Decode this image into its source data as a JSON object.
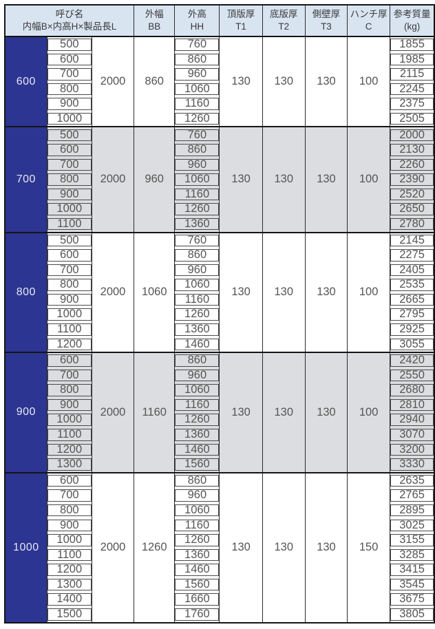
{
  "colors": {
    "header_bg": "#d9e4f1",
    "navy": "#2c3591",
    "gray_band": "#dcdde0",
    "white_band": "#ffffff",
    "outer_border": "#141414",
    "grid_line": "#2b2b2b",
    "box_border": "#4a4a4a",
    "header_text": "#3a3a3a",
    "number_text": "#555555",
    "text_on_navy": "#e7e8f2"
  },
  "table": {
    "header": {
      "name": {
        "line1": "呼び名",
        "line2": "内幅B×内高H×製品長L"
      },
      "cols": [
        {
          "line1": "外幅",
          "line2": "BB"
        },
        {
          "line1": "外高",
          "line2": "HH"
        },
        {
          "line1": "頂版厚",
          "line2": "T1"
        },
        {
          "line1": "底版厚",
          "line2": "T2"
        },
        {
          "line1": "側壁厚",
          "line2": "T3"
        },
        {
          "line1": "ハンチ厚",
          "line2": "C"
        },
        {
          "line1": "参考質量",
          "line2": "(kg)"
        }
      ]
    },
    "groups": [
      {
        "inner_width_B": "600",
        "product_length_L": "2000",
        "outer_width_BB": "860",
        "T1": "130",
        "T2": "130",
        "T3": "130",
        "C": "100",
        "band": "white",
        "rows": [
          {
            "H": "500",
            "HH": "760",
            "mass": "1855"
          },
          {
            "H": "600",
            "HH": "860",
            "mass": "1985"
          },
          {
            "H": "700",
            "HH": "960",
            "mass": "2115"
          },
          {
            "H": "800",
            "HH": "1060",
            "mass": "2245"
          },
          {
            "H": "900",
            "HH": "1160",
            "mass": "2375"
          },
          {
            "H": "1000",
            "HH": "1260",
            "mass": "2505"
          }
        ]
      },
      {
        "inner_width_B": "700",
        "product_length_L": "2000",
        "outer_width_BB": "960",
        "T1": "130",
        "T2": "130",
        "T3": "130",
        "C": "100",
        "band": "gray",
        "rows": [
          {
            "H": "500",
            "HH": "760",
            "mass": "2000"
          },
          {
            "H": "600",
            "HH": "860",
            "mass": "2130"
          },
          {
            "H": "700",
            "HH": "960",
            "mass": "2260"
          },
          {
            "H": "800",
            "HH": "1060",
            "mass": "2390"
          },
          {
            "H": "900",
            "HH": "1160",
            "mass": "2520"
          },
          {
            "H": "1000",
            "HH": "1260",
            "mass": "2650"
          },
          {
            "H": "1100",
            "HH": "1360",
            "mass": "2780"
          }
        ]
      },
      {
        "inner_width_B": "800",
        "product_length_L": "2000",
        "outer_width_BB": "1060",
        "T1": "130",
        "T2": "130",
        "T3": "130",
        "C": "100",
        "band": "white",
        "rows": [
          {
            "H": "500",
            "HH": "760",
            "mass": "2145"
          },
          {
            "H": "600",
            "HH": "860",
            "mass": "2275"
          },
          {
            "H": "700",
            "HH": "960",
            "mass": "2405"
          },
          {
            "H": "800",
            "HH": "1060",
            "mass": "2535"
          },
          {
            "H": "900",
            "HH": "1160",
            "mass": "2665"
          },
          {
            "H": "1000",
            "HH": "1260",
            "mass": "2795"
          },
          {
            "H": "1100",
            "HH": "1360",
            "mass": "2925"
          },
          {
            "H": "1200",
            "HH": "1460",
            "mass": "3055"
          }
        ]
      },
      {
        "inner_width_B": "900",
        "product_length_L": "2000",
        "outer_width_BB": "1160",
        "T1": "130",
        "T2": "130",
        "T3": "130",
        "C": "100",
        "band": "gray",
        "rows": [
          {
            "H": "600",
            "HH": "860",
            "mass": "2420"
          },
          {
            "H": "700",
            "HH": "960",
            "mass": "2550"
          },
          {
            "H": "800",
            "HH": "1060",
            "mass": "2680"
          },
          {
            "H": "900",
            "HH": "1160",
            "mass": "2810"
          },
          {
            "H": "1000",
            "HH": "1260",
            "mass": "2940"
          },
          {
            "H": "1100",
            "HH": "1360",
            "mass": "3070"
          },
          {
            "H": "1200",
            "HH": "1460",
            "mass": "3200"
          },
          {
            "H": "1300",
            "HH": "1560",
            "mass": "3330"
          }
        ]
      },
      {
        "inner_width_B": "1000",
        "product_length_L": "2000",
        "outer_width_BB": "1260",
        "T1": "130",
        "T2": "130",
        "T3": "130",
        "C": "150",
        "band": "white",
        "rows": [
          {
            "H": "600",
            "HH": "860",
            "mass": "2635"
          },
          {
            "H": "700",
            "HH": "960",
            "mass": "2765"
          },
          {
            "H": "800",
            "HH": "1060",
            "mass": "2895"
          },
          {
            "H": "900",
            "HH": "1160",
            "mass": "3025"
          },
          {
            "H": "1000",
            "HH": "1260",
            "mass": "3155"
          },
          {
            "H": "1100",
            "HH": "1360",
            "mass": "3285"
          },
          {
            "H": "1200",
            "HH": "1460",
            "mass": "3415"
          },
          {
            "H": "1300",
            "HH": "1560",
            "mass": "3545"
          },
          {
            "H": "1400",
            "HH": "1660",
            "mass": "3675"
          },
          {
            "H": "1500",
            "HH": "1760",
            "mass": "3805"
          }
        ]
      }
    ]
  }
}
